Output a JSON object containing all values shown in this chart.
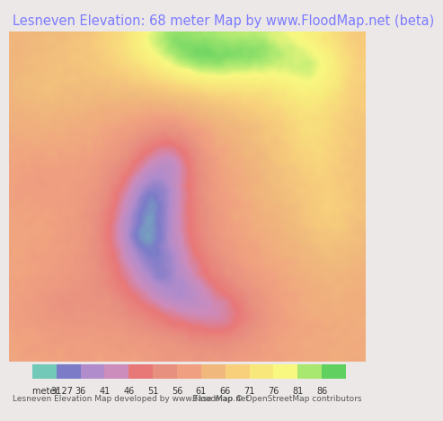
{
  "title": "Lesneven Elevation: 68 meter Map by www.FloodMap.net (beta)",
  "title_color": "#7b7bff",
  "title_bg": "#ede8e8",
  "title_fontsize": 10.5,
  "map_image_placeholder": true,
  "colorbar": {
    "values": [
      27,
      31,
      36,
      41,
      46,
      51,
      56,
      61,
      66,
      71,
      76,
      81,
      86
    ],
    "colors": [
      "#72c9b8",
      "#7b7bc8",
      "#b08ccc",
      "#cc8cbc",
      "#e87878",
      "#e89080",
      "#f0a080",
      "#f0b87c",
      "#f8d07c",
      "#f8e87c",
      "#f8f880",
      "#a8e870",
      "#60d060"
    ],
    "label_prefix": "meter "
  },
  "bottom_text_left": "Lesneven Elevation Map developed by www.FloodMap.net",
  "bottom_text_right": "Base map © OpenStreetMap contributors",
  "bottom_bg": "#ede8e8",
  "map_bg": "#f5d890",
  "fig_width": 5.12,
  "fig_height": 5.82
}
